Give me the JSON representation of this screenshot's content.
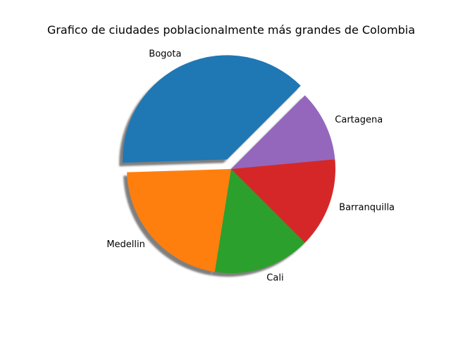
{
  "chart_data": {
    "type": "pie",
    "title": "Grafico de ciudades poblacionalmente más grandes de Colombia",
    "start_angle_deg": 45,
    "counterclockwise": true,
    "shadow": true,
    "slices": [
      {
        "label": "Bogota",
        "value": 38,
        "color": "#1f77b4",
        "explode": true
      },
      {
        "label": "Medellin",
        "value": 22,
        "color": "#ff7f0e",
        "explode": false
      },
      {
        "label": "Cali",
        "value": 15,
        "color": "#2ca02c",
        "explode": false
      },
      {
        "label": "Barranquilla",
        "value": 14,
        "color": "#d62728",
        "explode": false
      },
      {
        "label": "Cartagena",
        "value": 11,
        "color": "#9467bd",
        "explode": false
      }
    ]
  }
}
